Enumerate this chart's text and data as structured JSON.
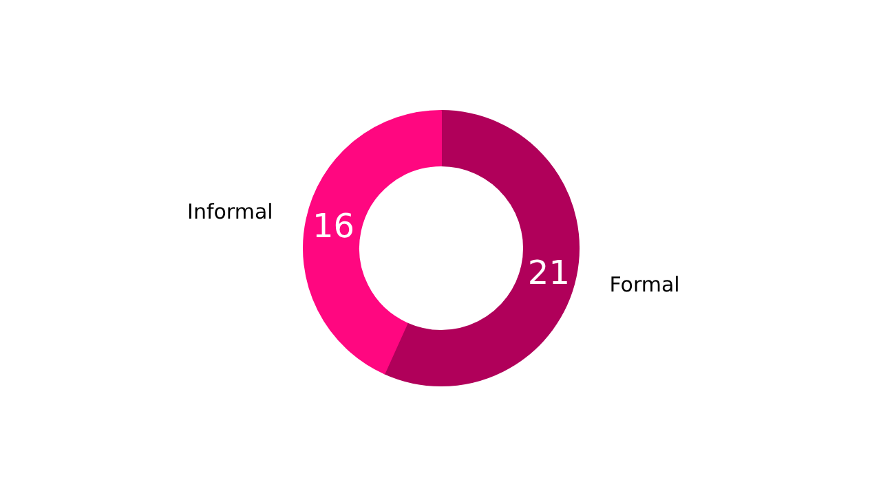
{
  "chart_data": {
    "type": "donut",
    "categories": [
      "Formal",
      "Informal"
    ],
    "values": [
      21,
      16
    ],
    "colors": [
      "#b0005a",
      "#ff0780"
    ],
    "data_labels": true
  }
}
